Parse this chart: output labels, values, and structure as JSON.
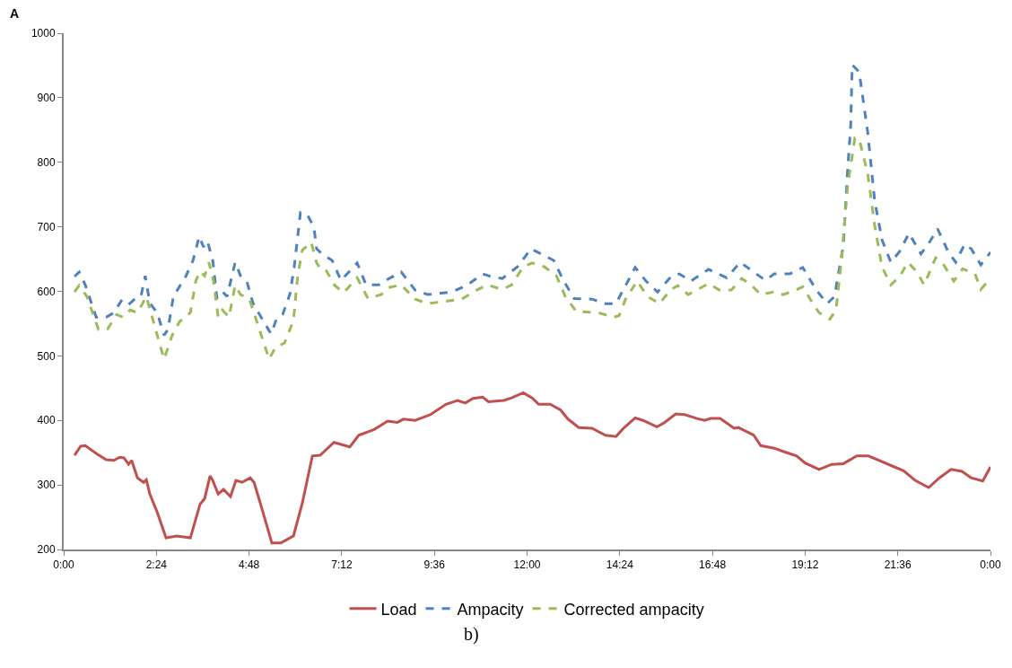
{
  "chart_data": {
    "type": "line",
    "annotations": [
      "A",
      "b)"
    ],
    "xlim": [
      0,
      24
    ],
    "xticks": [
      {
        "value": 0,
        "label": "0:00"
      },
      {
        "value": 2.4,
        "label": "2:24"
      },
      {
        "value": 4.8,
        "label": "4:48"
      },
      {
        "value": 7.2,
        "label": "7:12"
      },
      {
        "value": 9.6,
        "label": "9:36"
      },
      {
        "value": 12,
        "label": "12:00"
      },
      {
        "value": 14.4,
        "label": "14:24"
      },
      {
        "value": 16.8,
        "label": "16:48"
      },
      {
        "value": 19.2,
        "label": "19:12"
      },
      {
        "value": 21.6,
        "label": "21:36"
      },
      {
        "value": 24,
        "label": "0:00"
      }
    ],
    "ylim": [
      200,
      1000
    ],
    "yticks": [
      200,
      300,
      400,
      500,
      600,
      700,
      800,
      900,
      1000
    ],
    "grid": false,
    "legend": "bottom",
    "marker": "none",
    "series": [
      {
        "name": "Load",
        "color": "#c0504d",
        "line_style": "solid",
        "x": [
          0.28,
          0.44,
          0.56,
          0.84,
          1.1,
          1.3,
          1.45,
          1.56,
          1.68,
          1.76,
          1.91,
          2.07,
          2.14,
          2.23,
          2.42,
          2.65,
          2.93,
          3.28,
          3.53,
          3.65,
          3.79,
          3.86,
          4.0,
          4.14,
          4.32,
          4.46,
          4.62,
          4.83,
          4.93,
          5.16,
          5.39,
          5.62,
          5.95,
          6.18,
          6.44,
          6.64,
          7.0,
          7.41,
          7.64,
          8.04,
          8.39,
          8.64,
          8.8,
          9.1,
          9.5,
          9.9,
          10.2,
          10.4,
          10.6,
          10.85,
          11.0,
          11.4,
          11.6,
          11.9,
          12.13,
          12.3,
          12.6,
          12.87,
          13.06,
          13.34,
          13.68,
          14.03,
          14.3,
          14.5,
          14.8,
          15.0,
          15.36,
          15.54,
          15.85,
          16.08,
          16.4,
          16.6,
          16.75,
          17.0,
          17.36,
          17.47,
          17.87,
          18.05,
          18.4,
          18.63,
          18.98,
          19.2,
          19.56,
          19.89,
          20.19,
          20.54,
          20.84,
          21.12,
          21.51,
          21.75,
          22.05,
          22.4,
          22.68,
          22.98,
          23.26,
          23.5,
          23.8,
          24
        ],
        "values": [
          346,
          360,
          361,
          349,
          339,
          338,
          343,
          342,
          332,
          338,
          311,
          304,
          308,
          286,
          258,
          218,
          221,
          218,
          270,
          279,
          314,
          307,
          286,
          293,
          282,
          307,
          304,
          311,
          304,
          258,
          210,
          210,
          221,
          272,
          345,
          346,
          366,
          359,
          377,
          386,
          399,
          397,
          402,
          400,
          409,
          425,
          431,
          427,
          434,
          436,
          429,
          431,
          435,
          443,
          435,
          425,
          425,
          416,
          402,
          389,
          388,
          377,
          375,
          388,
          404,
          400,
          390,
          396,
          410,
          409,
          403,
          400,
          403,
          403,
          388,
          389,
          377,
          361,
          357,
          352,
          345,
          334,
          324,
          332,
          333,
          345,
          345,
          338,
          328,
          322,
          307,
          296,
          311,
          324,
          321,
          311,
          306,
          328
        ]
      },
      {
        "name": "Ampacity",
        "color": "#4f81bd",
        "line_style": "dashed",
        "x": [
          0.28,
          0.4,
          0.56,
          0.84,
          1.1,
          1.3,
          1.49,
          1.65,
          1.84,
          2.0,
          2.11,
          2.23,
          2.42,
          2.6,
          2.7,
          2.84,
          3.16,
          3.35,
          3.51,
          3.62,
          3.72,
          3.86,
          3.97,
          4.12,
          4.23,
          4.44,
          4.58,
          4.74,
          4.9,
          5.16,
          5.37,
          5.51,
          5.67,
          5.86,
          5.97,
          6.13,
          6.3,
          6.48,
          6.55,
          6.67,
          6.95,
          7.18,
          7.6,
          7.83,
          8.16,
          8.34,
          8.74,
          9.1,
          9.43,
          9.62,
          10.04,
          10.43,
          10.85,
          11.06,
          11.36,
          11.75,
          12.1,
          12.36,
          12.69,
          12.94,
          13.22,
          13.68,
          14.03,
          14.3,
          14.55,
          14.8,
          15.08,
          15.38,
          15.73,
          15.94,
          16.24,
          16.7,
          17.17,
          17.52,
          17.8,
          18.17,
          18.4,
          18.8,
          19.14,
          19.49,
          19.77,
          19.96,
          20.19,
          20.3,
          20.38,
          20.42,
          20.6,
          20.82,
          21.0,
          21.19,
          21.42,
          21.65,
          21.89,
          22.2,
          22.44,
          22.63,
          22.9,
          23.1,
          23.33,
          23.5,
          23.75,
          23.98,
          24
        ],
        "values": [
          623,
          630,
          610,
          560,
          560,
          567,
          585,
          578,
          588,
          592,
          624,
          582,
          567,
          532,
          541,
          592,
          623,
          648,
          685,
          669,
          678,
          648,
          589,
          599,
          592,
          645,
          624,
          616,
          582,
          555,
          534,
          557,
          564,
          596,
          638,
          722,
          720,
          699,
          666,
          659,
          648,
          617,
          644,
          610,
          610,
          617,
          630,
          602,
          595,
          596,
          599,
          609,
          627,
          623,
          620,
          638,
          666,
          658,
          648,
          617,
          589,
          588,
          581,
          581,
          609,
          637,
          616,
          599,
          623,
          627,
          616,
          634,
          621,
          645,
          633,
          617,
          627,
          627,
          637,
          602,
          581,
          592,
          671,
          787,
          856,
          951,
          940,
          847,
          741,
          680,
          645,
          662,
          690,
          658,
          678,
          697,
          662,
          645,
          673,
          666,
          641,
          659,
          658
        ]
      },
      {
        "name": "Corrected ampacity",
        "color": "#9bbb59",
        "line_style": "dashed",
        "x": [
          0.28,
          0.4,
          0.6,
          0.9,
          1.14,
          1.37,
          1.53,
          1.72,
          1.91,
          2.14,
          2.37,
          2.6,
          2.81,
          3.0,
          3.28,
          3.42,
          3.53,
          3.65,
          3.76,
          3.88,
          4.0,
          4.11,
          4.28,
          4.44,
          4.58,
          4.81,
          5.04,
          5.32,
          5.48,
          5.72,
          5.95,
          6.06,
          6.18,
          6.41,
          6.55,
          6.67,
          6.78,
          7.02,
          7.25,
          7.6,
          7.88,
          8.22,
          8.41,
          8.74,
          9.1,
          9.43,
          9.8,
          10.31,
          10.6,
          10.97,
          11.36,
          11.6,
          11.9,
          12.13,
          12.45,
          12.76,
          12.99,
          13.27,
          13.85,
          14.22,
          14.38,
          14.55,
          14.85,
          15.12,
          15.43,
          15.71,
          15.9,
          16.17,
          16.7,
          16.98,
          17.29,
          17.56,
          17.8,
          18.05,
          18.38,
          18.63,
          18.96,
          19.14,
          19.33,
          19.56,
          19.84,
          20.0,
          20.14,
          20.3,
          20.49,
          20.6,
          20.82,
          21.0,
          21.19,
          21.42,
          21.65,
          21.86,
          22.1,
          22.28,
          22.58,
          22.79,
          23.05,
          23.28,
          23.6,
          23.75,
          24
        ],
        "values": [
          599,
          609,
          592,
          541,
          542,
          564,
          560,
          571,
          567,
          592,
          543,
          495,
          532,
          553,
          567,
          616,
          631,
          624,
          645,
          616,
          560,
          571,
          560,
          609,
          595,
          588,
          546,
          495,
          513,
          520,
          555,
          624,
          664,
          676,
          644,
          634,
          634,
          609,
          598,
          621,
          589,
          595,
          606,
          610,
          588,
          581,
          584,
          588,
          599,
          610,
          603,
          610,
          638,
          644,
          638,
          624,
          592,
          569,
          567,
          560,
          562,
          588,
          616,
          592,
          581,
          602,
          609,
          595,
          612,
          602,
          602,
          620,
          610,
          595,
          599,
          595,
          602,
          607,
          588,
          567,
          557,
          571,
          648,
          763,
          838,
          836,
          783,
          703,
          638,
          610,
          623,
          645,
          630,
          610,
          652,
          641,
          616,
          635,
          627,
          603,
          620
        ]
      }
    ]
  }
}
